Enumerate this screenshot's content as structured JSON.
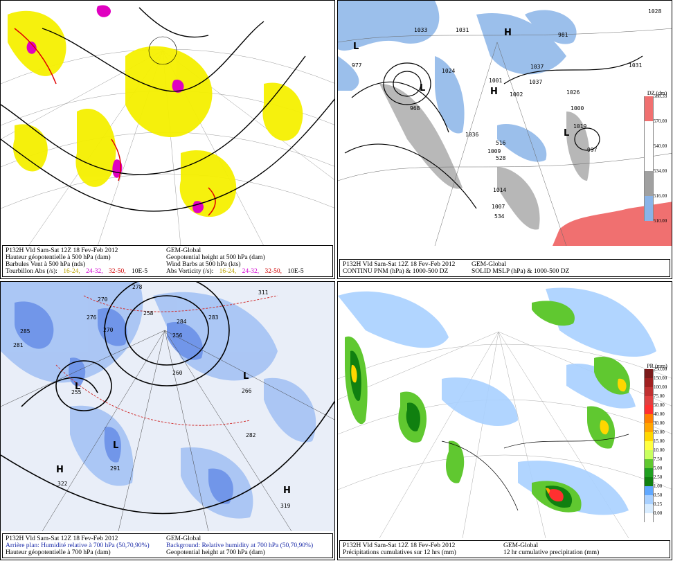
{
  "panels": {
    "vorticity": {
      "line1_left": "P132H Vld Sam-Sat 12Z 18 Fev-Feb 2012",
      "line1_right": "GEM-Global",
      "line2_left": "Hauteur géopotentielle à 500 hPa (dam)",
      "line2_right": "Geopotential height at 500 hPa (dam)",
      "line3_left": "Barbules Vent à 500 hPa (nds)",
      "line3_right": "Wind Barbs at 500 hPa  (kts)",
      "line4_left": "Tourbillon Abs (/s):",
      "line4_right": "Abs Vorticity (/s):",
      "ranges": [
        "16-24,",
        "24-32,",
        "32-50,"
      ],
      "unit": "10E-5",
      "highs": [],
      "lows": []
    },
    "mslp": {
      "line1_left": "P132H Vld Sam-Sat 12Z 18 Fev-Feb 2012",
      "line1_right": "GEM-Global",
      "line2_left": "CONTINU PNM  (hPa) & 1000-500 DZ",
      "line2_right": "SOLID   MSLP (hPa) & 1000-500 DZ",
      "colorbar_title": "DZ (dm)",
      "colorbar_labels": [
        "588.33",
        "570.00",
        "540.00",
        "534.00",
        "516.00",
        "510.00"
      ],
      "pressure_labels": [
        "1033",
        "1031",
        "1028",
        "1026",
        "1024",
        "1037",
        "1001",
        "1002",
        "1000",
        "1009",
        "1019",
        "997",
        "968",
        "1036",
        "1014",
        "1007",
        "1037",
        "977",
        "981",
        "1031"
      ],
      "thickness_labels": [
        "516",
        "528",
        "534"
      ]
    },
    "humidity": {
      "line1_left": "P132H Vld Sam-Sat 12Z 18 Fev-Feb 2012",
      "line1_right": "GEM-Global",
      "line2_left": "Arrière plan: Humidité relative à 700 hPa (50,70,90%)",
      "line2_right": "Background: Relative humidity at 700 hPa (50,70,90%)",
      "line3_left": "Hauteur géopotentielle à 700 hPa (dam)",
      "line3_right": "Geopotential height at 700 hPa (dam)",
      "labels": [
        "270",
        "276",
        "278",
        "285",
        "281",
        "283",
        "311",
        "256",
        "260",
        "266",
        "282",
        "270",
        "291",
        "322",
        "319",
        "258",
        "255",
        "284"
      ]
    },
    "precip": {
      "line1_left": "P132H Vld Sam-Sat 12Z 18 Fev-Feb 2012",
      "line1_right": "GEM-Global",
      "line2_left": "Précipitations cumulatives sur 12 hrs (mm)",
      "line2_right": "12 hr cumulative precipitation      (mm)",
      "colorbar_title": "PR (mm)",
      "colorbar_levels": [
        "250.00",
        "150.00",
        "100.00",
        "75.00",
        "50.00",
        "40.00",
        "30.00",
        "20.00",
        "15.00",
        "10.00",
        "7.50",
        "5.00",
        "2.50",
        "1.00",
        "0.50",
        "0.25",
        "0.00"
      ],
      "colorbar_colors": [
        "#7a1a1a",
        "#a02020",
        "#c03030",
        "#e04040",
        "#ff3030",
        "#ff7f00",
        "#ffa500",
        "#ffd700",
        "#ffff40",
        "#c8ff60",
        "#60c830",
        "#20a020",
        "#108010",
        "#60a8ff",
        "#a8d0ff",
        "#d8ecff",
        "#ffffff"
      ]
    }
  },
  "colors": {
    "vort_yellow": "#f5f000",
    "vort_magenta": "#e000c0",
    "vort_red": "#e00000",
    "rh_blue": "#6a90e8",
    "rh_light": "#a8c4f4",
    "mslp_blue": "#8ab4e8",
    "mslp_grey": "#a0a0a0",
    "mslp_red": "#f07070"
  }
}
